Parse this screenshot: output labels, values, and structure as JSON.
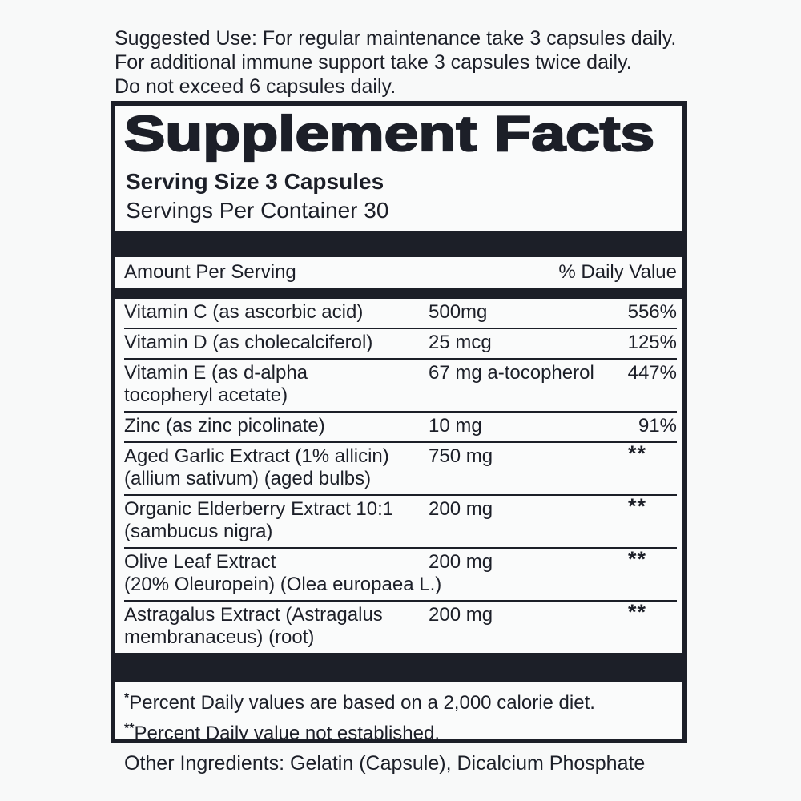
{
  "colors": {
    "ink": "#1c1f28",
    "background": "#f8f9f9"
  },
  "suggested_use": "Suggested Use: For regular maintenance take 3 capsules daily.\nFor additional immune support take 3 capsules twice daily.\nDo not exceed 6 capsules daily.",
  "panel": {
    "title": "Supplement Facts",
    "serving_size": "Serving Size 3 Capsules",
    "servings_per_container": "Servings Per Container 30",
    "columns": {
      "amount_header": "Amount Per Serving",
      "dv_header": "% Daily Value"
    },
    "rows": [
      {
        "name": "Vitamin C (as ascorbic acid)",
        "amount": "500mg",
        "dv": "556%"
      },
      {
        "name": "Vitamin D (as cholecalciferol)",
        "amount": "25 mcg",
        "dv": "125%"
      },
      {
        "name": "Vitamin E (as d-alpha\ntocopheryl acetate)",
        "amount": "67 mg a-tocopherol",
        "dv": "447%"
      },
      {
        "name": "Zinc (as zinc picolinate)",
        "amount": "10 mg",
        "dv": "91%"
      },
      {
        "name": "Aged Garlic Extract (1% allicin)\n(allium sativum) (aged bulbs)",
        "amount": "750 mg",
        "dv": "**"
      },
      {
        "name": "Organic Elderberry Extract 10:1\n(sambucus nigra)",
        "amount": "200 mg",
        "dv": "**"
      },
      {
        "name": "Olive Leaf Extract\n(20% Oleuropein) (Olea europaea L.)",
        "amount": "200 mg",
        "dv": "**"
      },
      {
        "name": "Astragalus Extract (Astragalus\nmembranaceus) (root)",
        "amount": "200 mg",
        "dv": "**"
      }
    ],
    "footnotes": [
      {
        "mark": "*",
        "text": "Percent Daily values are based on a 2,000 calorie diet."
      },
      {
        "mark": "**",
        "text": "Percent Daily value not established."
      }
    ]
  },
  "other_ingredients": "Other Ingredients: Gelatin (Capsule), Dicalcium Phosphate"
}
